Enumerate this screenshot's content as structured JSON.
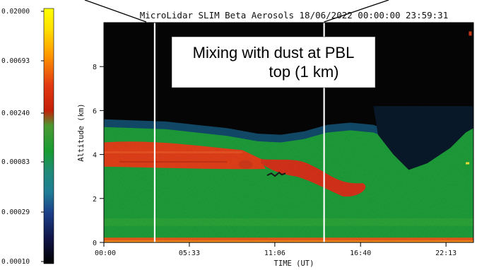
{
  "chart_data": {
    "type": "heatmap",
    "title": "MicroLidar SLIM Beta Aerosols 18/06/2022 00:00:00 23:59:31",
    "xlabel": "TIME (UT)",
    "ylabel": "Altitude (km)",
    "x_ticks": [
      "00:00",
      "05:33",
      "11:06",
      "16:40",
      "22:13"
    ],
    "x_tick_hours": [
      0,
      5.55,
      11.1,
      16.667,
      22.217
    ],
    "xlim_hours": [
      0,
      24
    ],
    "y_ticks": [
      0,
      2,
      4,
      6,
      8
    ],
    "ylim": [
      0,
      10
    ],
    "colorbar": {
      "scale": "log",
      "tick_labels": [
        "0.02000",
        "0.00693",
        "0.00240",
        "0.00083",
        "0.00029",
        "0.00010"
      ],
      "tick_values": [
        0.02,
        0.00693,
        0.0024,
        0.00083,
        0.00029,
        0.0001
      ],
      "colors": [
        "#ffff00",
        "#ff9900",
        "#e23a10",
        "#c42008",
        "#159c30",
        "#1e8a78",
        "#1f7d96",
        "#1b3f8a",
        "#101548",
        "#000000"
      ]
    },
    "layers": [
      {
        "kind": "background",
        "value_level": "very low",
        "color": "#0a0a0a"
      },
      {
        "kind": "aerosol_layer",
        "base_km": 0,
        "top_km": 5.1,
        "start_hour": 0,
        "end_hour": 24,
        "color": "#1e9e3a"
      },
      {
        "kind": "dust_layer",
        "base_km": 3.3,
        "top_km": 4.6,
        "start_hour": 0,
        "end_hour": 10,
        "color": "#e2401a"
      },
      {
        "kind": "dust_plume",
        "base_km": 2.0,
        "top_km": 3.7,
        "start_hour": 11,
        "end_hour": 16.5,
        "color": "#d6321a"
      },
      {
        "kind": "surface_layer",
        "base_km": 0,
        "top_km": 0.2,
        "start_hour": 0,
        "end_hour": 24,
        "color": "#e85a1a"
      }
    ],
    "vertical_markers_hours": [
      3.3,
      14.3
    ],
    "annotation": "Mixing with dust at PBL\ntop (1 km)",
    "grid": false,
    "legend": "none"
  },
  "colors": {
    "background": "#ffffff",
    "annotation_box": "#ffffff",
    "marker_line": "#ffffff"
  }
}
